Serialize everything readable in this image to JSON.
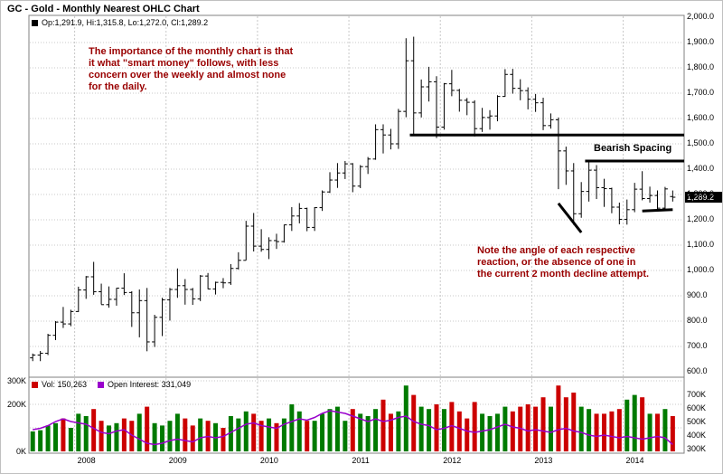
{
  "window": {
    "title": "GC - Gold - Monthly Nearest OHLC Chart"
  },
  "price_pane": {
    "legend": {
      "text": "Op:1,291.9, Hi:1,315.8, Lo:1,272.0, Cl:1,289.2"
    },
    "annotations": {
      "smart_money": "The importance of the monthly chart is that\nit what \"smart money\" follows, with less\nconcern over the weekly and almost none\nfor the daily.",
      "reaction": "Note the angle of each respective\nreaction, or the absence of one in\nthe current 2 month decline attempt.",
      "bearish_spacing": "Bearish Spacing"
    },
    "last_price_tag": "1,289.2",
    "y_axis_labels": [
      "2,000.0",
      "1,900.0",
      "1,800.0",
      "1,700.0",
      "1,600.0",
      "1,500.0",
      "1,400.0",
      "1,300.0",
      "1,200.0",
      "1,100.0",
      "1,000.0",
      "900.0",
      "800.0",
      "700.0",
      "600.0"
    ]
  },
  "volume_pane": {
    "volume_legend": "Vol: 150,263",
    "oi_legend": "Open Interest: 331,049",
    "left_axis": [
      {
        "label": "300K",
        "value": 300
      },
      {
        "label": "200K",
        "value": 200
      },
      {
        "label": "0K",
        "value": 0
      }
    ],
    "right_axis": [
      {
        "label": "700K",
        "value": 700
      },
      {
        "label": "600K",
        "value": 600
      },
      {
        "label": "500K",
        "value": 500
      },
      {
        "label": "400K",
        "value": 400
      },
      {
        "label": "300K",
        "value": 300
      }
    ]
  },
  "x_axis": {
    "year_labels": [
      {
        "label": "2008",
        "month": "2008-01"
      },
      {
        "label": "2009",
        "month": "2009-01"
      },
      {
        "label": "2010",
        "month": "2010-01"
      },
      {
        "label": "2011",
        "month": "2011-01"
      },
      {
        "label": "2012",
        "month": "2012-01"
      },
      {
        "label": "2013",
        "month": "2013-01"
      },
      {
        "label": "2014",
        "month": "2014-01"
      }
    ]
  },
  "colors": {
    "ohlc": "#000000",
    "up_volume": "#007A00",
    "down_volume": "#CC0000",
    "open_interest": "#9900CC",
    "annotation": "#990000",
    "grid": "#C8C8C8",
    "pane_border": "#808080",
    "tag_bg": "#000000",
    "tag_text": "#FFFFFF"
  },
  "chart_data": {
    "type": "ohlc",
    "title": "GC - Gold - Monthly Nearest OHLC Chart",
    "frequency": "monthly",
    "start_month": "2007-07",
    "end_month": "2014-07",
    "price_axis": {
      "min": 600,
      "max": 2000,
      "tick": 100,
      "side": "right"
    },
    "volume_axis": {
      "min": 0,
      "max": 300,
      "unit": "K",
      "side": "left"
    },
    "open_interest_axis": {
      "min": 300,
      "max": 700,
      "unit": "K",
      "side": "right"
    },
    "latest": {
      "open": 1291.9,
      "high": 1315.8,
      "low": 1272.0,
      "close": 1289.2,
      "volume": 150263,
      "open_interest": 331049
    },
    "ohlc": [
      [
        655,
        672,
        642,
        666
      ],
      [
        666,
        682,
        642,
        673
      ],
      [
        673,
        750,
        666,
        744
      ],
      [
        744,
        800,
        725,
        796
      ],
      [
        796,
        856,
        773,
        789
      ],
      [
        789,
        845,
        780,
        838
      ],
      [
        838,
        936,
        836,
        923
      ],
      [
        923,
        978,
        888,
        975
      ],
      [
        975,
        1034,
        904,
        916
      ],
      [
        916,
        948,
        866,
        865
      ],
      [
        865,
        937,
        853,
        886
      ],
      [
        886,
        931,
        861,
        930
      ],
      [
        930,
        989,
        903,
        913
      ],
      [
        913,
        918,
        777,
        833
      ],
      [
        833,
        925,
        736,
        881
      ],
      [
        881,
        931,
        681,
        718
      ],
      [
        718,
        825,
        698,
        815
      ],
      [
        815,
        892,
        741,
        884
      ],
      [
        884,
        931,
        802,
        925
      ],
      [
        925,
        1008,
        892,
        940
      ],
      [
        940,
        966,
        865,
        925
      ],
      [
        925,
        931,
        864,
        888
      ],
      [
        888,
        982,
        879,
        978
      ],
      [
        978,
        990,
        926,
        927
      ],
      [
        927,
        956,
        905,
        953
      ],
      [
        953,
        970,
        930,
        951
      ],
      [
        951,
        1025,
        943,
        1008
      ],
      [
        1008,
        1072,
        1004,
        1040
      ],
      [
        1040,
        1196,
        1040,
        1175
      ],
      [
        1175,
        1227,
        1075,
        1096
      ],
      [
        1096,
        1163,
        1074,
        1083
      ],
      [
        1083,
        1131,
        1045,
        1118
      ],
      [
        1118,
        1145,
        1085,
        1114
      ],
      [
        1114,
        1181,
        1110,
        1180
      ],
      [
        1180,
        1250,
        1156,
        1215
      ],
      [
        1215,
        1266,
        1186,
        1245
      ],
      [
        1245,
        1248,
        1155,
        1170
      ],
      [
        1170,
        1250,
        1156,
        1248
      ],
      [
        1248,
        1316,
        1235,
        1310
      ],
      [
        1310,
        1388,
        1306,
        1357
      ],
      [
        1357,
        1424,
        1326,
        1385
      ],
      [
        1385,
        1432,
        1361,
        1421
      ],
      [
        1421,
        1424,
        1309,
        1333
      ],
      [
        1333,
        1416,
        1325,
        1410
      ],
      [
        1410,
        1448,
        1381,
        1440
      ],
      [
        1440,
        1577,
        1437,
        1556
      ],
      [
        1556,
        1577,
        1462,
        1535
      ],
      [
        1535,
        1559,
        1478,
        1500
      ],
      [
        1500,
        1638,
        1480,
        1628
      ],
      [
        1628,
        1917,
        1605,
        1828
      ],
      [
        1828,
        1923,
        1535,
        1622
      ],
      [
        1622,
        1754,
        1604,
        1725
      ],
      [
        1725,
        1804,
        1667,
        1745
      ],
      [
        1745,
        1767,
        1523,
        1566
      ],
      [
        1566,
        1740,
        1556,
        1737
      ],
      [
        1737,
        1792,
        1688,
        1711
      ],
      [
        1711,
        1717,
        1627,
        1672
      ],
      [
        1672,
        1681,
        1613,
        1664
      ],
      [
        1664,
        1672,
        1529,
        1560
      ],
      [
        1560,
        1642,
        1547,
        1604
      ],
      [
        1604,
        1633,
        1556,
        1610
      ],
      [
        1610,
        1692,
        1589,
        1687
      ],
      [
        1687,
        1795,
        1686,
        1774
      ],
      [
        1774,
        1796,
        1698,
        1719
      ],
      [
        1719,
        1755,
        1672,
        1710
      ],
      [
        1710,
        1723,
        1636,
        1676
      ],
      [
        1676,
        1697,
        1626,
        1662
      ],
      [
        1662,
        1682,
        1554,
        1572
      ],
      [
        1572,
        1620,
        1560,
        1595
      ],
      [
        1595,
        1604,
        1321,
        1472
      ],
      [
        1472,
        1489,
        1338,
        1393
      ],
      [
        1393,
        1424,
        1180,
        1224
      ],
      [
        1224,
        1349,
        1208,
        1312
      ],
      [
        1312,
        1434,
        1272,
        1396
      ],
      [
        1396,
        1416,
        1282,
        1327
      ],
      [
        1327,
        1362,
        1251,
        1323
      ],
      [
        1323,
        1327,
        1226,
        1250
      ],
      [
        1250,
        1268,
        1182,
        1202
      ],
      [
        1202,
        1280,
        1181,
        1240
      ],
      [
        1240,
        1346,
        1230,
        1321
      ],
      [
        1321,
        1392,
        1277,
        1284
      ],
      [
        1284,
        1331,
        1268,
        1296
      ],
      [
        1296,
        1316,
        1242,
        1246
      ],
      [
        1246,
        1330,
        1240,
        1322
      ],
      [
        1291.9,
        1315.8,
        1272.0,
        1289.2
      ]
    ],
    "volume_k": [
      85,
      90,
      110,
      120,
      140,
      100,
      160,
      150,
      180,
      130,
      110,
      120,
      140,
      130,
      160,
      190,
      120,
      110,
      130,
      160,
      140,
      110,
      140,
      130,
      120,
      100,
      150,
      140,
      170,
      160,
      130,
      140,
      120,
      140,
      200,
      170,
      130,
      130,
      160,
      180,
      190,
      130,
      180,
      160,
      150,
      180,
      220,
      160,
      170,
      280,
      240,
      190,
      180,
      200,
      180,
      210,
      170,
      140,
      210,
      160,
      150,
      160,
      190,
      170,
      190,
      200,
      190,
      230,
      190,
      280,
      230,
      250,
      190,
      180,
      160,
      160,
      170,
      180,
      220,
      240,
      230,
      160,
      160,
      180,
      150
    ],
    "open_interest_k": [
      440,
      450,
      470,
      500,
      520,
      500,
      490,
      480,
      450,
      420,
      410,
      430,
      440,
      400,
      370,
      340,
      330,
      340,
      360,
      370,
      360,
      350,
      380,
      390,
      380,
      390,
      420,
      450,
      480,
      490,
      470,
      460,
      450,
      480,
      500,
      520,
      510,
      530,
      560,
      580,
      570,
      560,
      540,
      520,
      500,
      520,
      500,
      510,
      530,
      540,
      500,
      480,
      470,
      440,
      450,
      470,
      450,
      430,
      420,
      430,
      440,
      460,
      480,
      460,
      450,
      430,
      440,
      430,
      420,
      440,
      450,
      430,
      420,
      400,
      390,
      400,
      390,
      380,
      390,
      380,
      370,
      380,
      390,
      380,
      331
    ],
    "overlay_lines": [
      {
        "name": "bearish-spacing-upper",
        "type": "hline",
        "price": 1535,
        "from_month": "2011-09",
        "to": "right-edge"
      },
      {
        "name": "bearish-spacing-lower",
        "type": "hline",
        "price": 1432,
        "from_month": "2013-08",
        "to": "right-edge"
      },
      {
        "name": "reaction-angle-2013",
        "type": "segment",
        "from": {
          "month": "2013-04",
          "price": 1265
        },
        "to": {
          "month": "2013-07",
          "price": 1150
        }
      },
      {
        "name": "flat-reaction-2014",
        "type": "segment",
        "from": {
          "month": "2014-03",
          "price": 1235
        },
        "to": {
          "month": "2014-07",
          "price": 1240
        }
      }
    ]
  }
}
